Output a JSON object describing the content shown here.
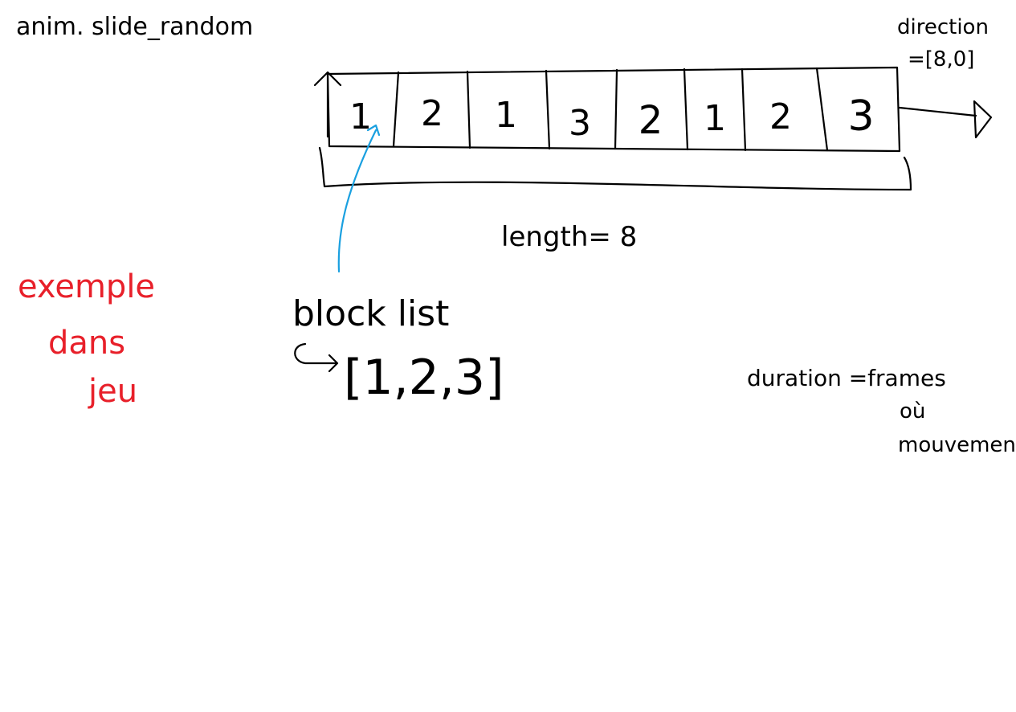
{
  "title": "anim. slide_random",
  "direction": {
    "label": "direction",
    "value": "=[8,0]"
  },
  "cells": [
    "1",
    "2",
    "1",
    "3",
    "2",
    "1",
    "2",
    "3"
  ],
  "length_label": "length= 8",
  "block_list": {
    "label": "block list",
    "value": "[1,2,3]"
  },
  "example_note": [
    "exemple",
    "dans",
    "jeu"
  ],
  "duration_note": [
    "duration =frames",
    "où",
    "mouvement"
  ],
  "colors": {
    "ink": "#000000",
    "accent_note": "#e8202a",
    "pointer": "#1aa0e0"
  }
}
